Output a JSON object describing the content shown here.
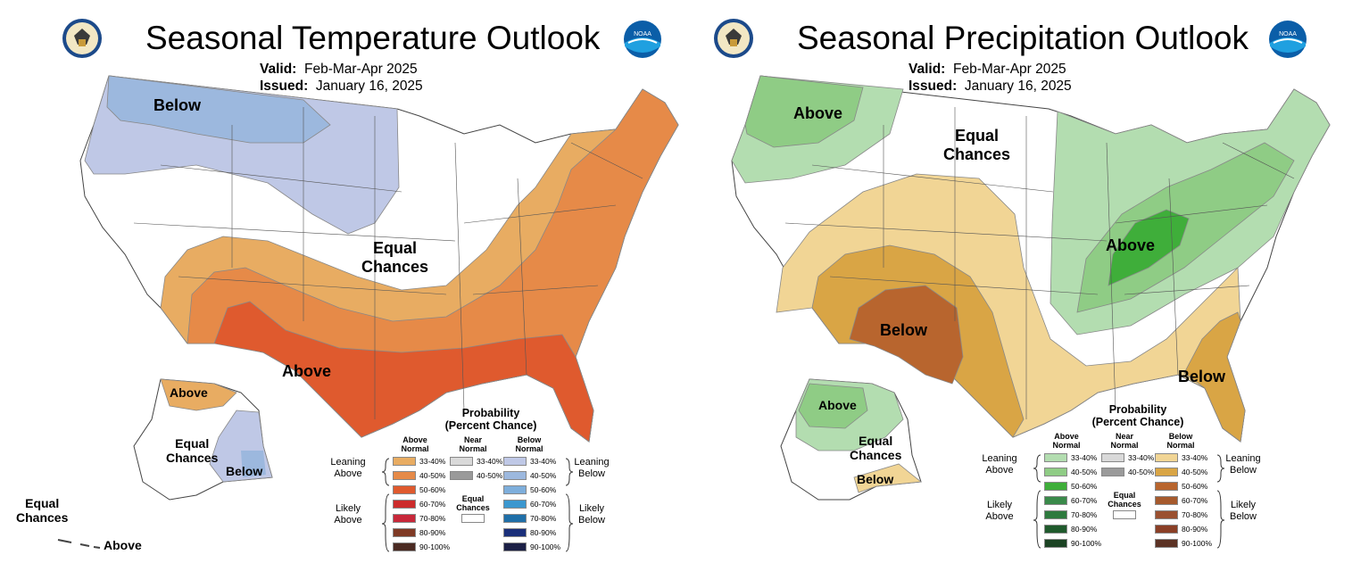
{
  "temperature": {
    "title": "Seasonal Temperature Outlook",
    "valid_label": "Valid:",
    "valid_value": "Feb-Mar-Apr 2025",
    "issued_label": "Issued:",
    "issued_value": "January 16, 2025",
    "map_labels": {
      "below": "Below",
      "equal_chances_line1": "Equal",
      "equal_chances_line2": "Chances",
      "above": "Above",
      "ak_above": "Above",
      "ak_equal_line1": "Equal",
      "ak_equal_line2": "Chances",
      "ak_below": "Below",
      "hi_equal_line1": "Equal",
      "hi_equal_line2": "Chances",
      "hi_above": "Above"
    },
    "legend": {
      "heading_line1": "Probability",
      "heading_line2": "(Percent Chance)",
      "col_above_line1": "Above",
      "col_above_line2": "Normal",
      "col_near_line1": "Near",
      "col_near_line2": "Normal",
      "col_below_line1": "Below",
      "col_below_line2": "Normal",
      "leaning_left_line1": "Leaning",
      "leaning_left_line2": "Above",
      "likely_left_line1": "Likely",
      "likely_left_line2": "Above",
      "leaning_right_line1": "Leaning",
      "leaning_right_line2": "Below",
      "likely_right_line1": "Likely",
      "likely_right_line2": "Below",
      "equal_line1": "Equal",
      "equal_line2": "Chances",
      "above_scale": [
        {
          "label": "33-40%",
          "color": "#e8ac62"
        },
        {
          "label": "40-50%",
          "color": "#e68a48"
        },
        {
          "label": "50-60%",
          "color": "#df5a2e"
        },
        {
          "label": "60-70%",
          "color": "#cc2b2b"
        },
        {
          "label": "70-80%",
          "color": "#c8283a"
        },
        {
          "label": "80-90%",
          "color": "#7f3a25"
        },
        {
          "label": "90-100%",
          "color": "#4a2a22"
        }
      ],
      "near_scale": [
        {
          "label": "33-40%",
          "color": "#d9d9d9"
        },
        {
          "label": "40-50%",
          "color": "#9a9a9a"
        }
      ],
      "below_scale": [
        {
          "label": "33-40%",
          "color": "#bfc8e6"
        },
        {
          "label": "40-50%",
          "color": "#9cb8de"
        },
        {
          "label": "50-60%",
          "color": "#7eaedb"
        },
        {
          "label": "60-70%",
          "color": "#3b97cf"
        },
        {
          "label": "70-80%",
          "color": "#1f6fa8"
        },
        {
          "label": "80-90%",
          "color": "#1a2f7a"
        },
        {
          "label": "90-100%",
          "color": "#1b1f45"
        }
      ]
    }
  },
  "precipitation": {
    "title": "Seasonal Precipitation Outlook",
    "valid_label": "Valid:",
    "valid_value": "Feb-Mar-Apr 2025",
    "issued_label": "Issued:",
    "issued_value": "January 16, 2025",
    "map_labels": {
      "above_nw": "Above",
      "equal_chances_line1": "Equal",
      "equal_chances_line2": "Chances",
      "above_ohio": "Above",
      "below_sw": "Below",
      "below_fl": "Below",
      "ak_above": "Above",
      "ak_equal_line1": "Equal",
      "ak_equal_line2": "Chances",
      "ak_below": "Below"
    },
    "legend": {
      "heading_line1": "Probability",
      "heading_line2": "(Percent Chance)",
      "col_above_line1": "Above",
      "col_above_line2": "Normal",
      "col_near_line1": "Near",
      "col_near_line2": "Normal",
      "col_below_line1": "Below",
      "col_below_line2": "Normal",
      "leaning_left_line1": "Leaning",
      "leaning_left_line2": "Above",
      "likely_left_line1": "Likely",
      "likely_left_line2": "Above",
      "leaning_right_line1": "Leaning",
      "leaning_right_line2": "Below",
      "likely_right_line1": "Likely",
      "likely_right_line2": "Below",
      "equal_line1": "Equal",
      "equal_line2": "Chances",
      "above_scale": [
        {
          "label": "33-40%",
          "color": "#b3ddb0"
        },
        {
          "label": "40-50%",
          "color": "#8fcc85"
        },
        {
          "label": "50-60%",
          "color": "#3fae3a"
        },
        {
          "label": "60-70%",
          "color": "#3a8a4a"
        },
        {
          "label": "70-80%",
          "color": "#2e7a3e"
        },
        {
          "label": "80-90%",
          "color": "#1f5a2c"
        },
        {
          "label": "90-100%",
          "color": "#1b4323"
        }
      ],
      "near_scale": [
        {
          "label": "33-40%",
          "color": "#d9d9d9"
        },
        {
          "label": "40-50%",
          "color": "#9a9a9a"
        }
      ],
      "below_scale": [
        {
          "label": "33-40%",
          "color": "#f1d595"
        },
        {
          "label": "40-50%",
          "color": "#d9a545"
        },
        {
          "label": "50-60%",
          "color": "#b8652e"
        },
        {
          "label": "60-70%",
          "color": "#a65a2d"
        },
        {
          "label": "70-80%",
          "color": "#9a5030"
        },
        {
          "label": "80-90%",
          "color": "#8a3f26"
        },
        {
          "label": "90-100%",
          "color": "#5b3224"
        }
      ]
    }
  }
}
